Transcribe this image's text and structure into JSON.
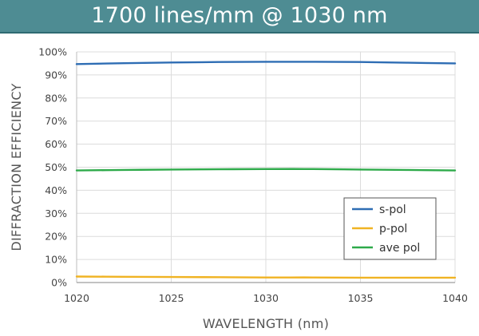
{
  "chart_data": {
    "type": "line",
    "title": "1700 lines/mm @ 1030 nm",
    "xlabel": "WAVELENGTH (nm)",
    "ylabel": "DIFFRACTION EFFICIENCY",
    "xlim": [
      1020,
      1040
    ],
    "ylim": [
      0,
      100
    ],
    "x_ticks": [
      1020,
      1025,
      1030,
      1035,
      1040
    ],
    "y_ticks": [
      0,
      10,
      20,
      30,
      40,
      50,
      60,
      70,
      80,
      90,
      100
    ],
    "y_tick_suffix": "%",
    "grid": true,
    "legend_position": "bottom-right",
    "x": [
      1020,
      1022.5,
      1025,
      1027.5,
      1030,
      1032.5,
      1035,
      1037.5,
      1040
    ],
    "series": [
      {
        "name": "s-pol",
        "color": "#2e6db4",
        "values": [
          94.7,
          95.1,
          95.4,
          95.6,
          95.7,
          95.7,
          95.6,
          95.3,
          95.0
        ]
      },
      {
        "name": "p-pol",
        "color": "#f0b323",
        "values": [
          2.6,
          2.5,
          2.4,
          2.3,
          2.2,
          2.2,
          2.1,
          2.1,
          2.1
        ]
      },
      {
        "name": "ave pol",
        "color": "#2eaa4a",
        "values": [
          48.6,
          48.8,
          49.0,
          49.1,
          49.2,
          49.2,
          49.0,
          48.8,
          48.6
        ]
      }
    ]
  }
}
